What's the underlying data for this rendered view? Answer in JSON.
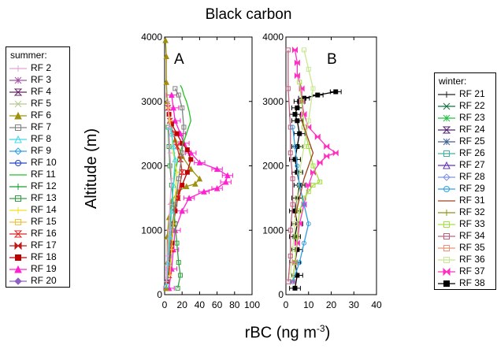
{
  "figure": {
    "title": "Black carbon",
    "ylabel": "Altitude (m)",
    "xlabel_base": "rBC (ng m",
    "xlabel_sup": "-3",
    "xlabel_end": ")"
  },
  "legends": {
    "summer": {
      "title": "summer:",
      "items": [
        {
          "label": "RF 2",
          "color": "#e8a0d8",
          "marker": "plus"
        },
        {
          "label": "RF 3",
          "color": "#a050a0",
          "marker": "asterisk"
        },
        {
          "label": "RF 4",
          "color": "#602060",
          "marker": "hourglass"
        },
        {
          "label": "RF 5",
          "color": "#b8c890",
          "marker": "x"
        },
        {
          "label": "RF 6",
          "color": "#a09010",
          "marker": "triangle-filled"
        },
        {
          "label": "RF 7",
          "color": "#808080",
          "marker": "square-open"
        },
        {
          "label": "RF 8",
          "color": "#40d8e8",
          "marker": "triangle-open"
        },
        {
          "label": "RF 9",
          "color": "#30a0e0",
          "marker": "diamond-open"
        },
        {
          "label": "RF 10",
          "color": "#2040d0",
          "marker": "circle-open"
        },
        {
          "label": "RF 11",
          "color": "#20c020",
          "marker": "none"
        },
        {
          "label": "RF 12",
          "color": "#10a030",
          "marker": "plus"
        },
        {
          "label": "RF 13",
          "color": "#30a040",
          "marker": "square-open"
        },
        {
          "label": "RF 14",
          "color": "#f0e020",
          "marker": "plus"
        },
        {
          "label": "RF 15",
          "color": "#f0c040",
          "marker": "square-open"
        },
        {
          "label": "RF 16",
          "color": "#e02020",
          "marker": "hourglass"
        },
        {
          "label": "RF 17",
          "color": "#c01818",
          "marker": "bowtie"
        },
        {
          "label": "RF 18",
          "color": "#c00000",
          "marker": "square-filled"
        },
        {
          "label": "RF 19",
          "color": "#ff20d0",
          "marker": "triangle-filled"
        },
        {
          "label": "RF 20",
          "color": "#9060c0",
          "marker": "diamond-filled"
        }
      ]
    },
    "winter": {
      "title": "winter:",
      "items": [
        {
          "label": "RF 21",
          "color": "#202020",
          "marker": "plus"
        },
        {
          "label": "RF 22",
          "color": "#107040",
          "marker": "x"
        },
        {
          "label": "RF 23",
          "color": "#20c040",
          "marker": "asterisk"
        },
        {
          "label": "RF 24",
          "color": "#502070",
          "marker": "hourglass"
        },
        {
          "label": "RF 25",
          "color": "#406090",
          "marker": "asterisk"
        },
        {
          "label": "RF 26",
          "color": "#40b0a0",
          "marker": "square-open"
        },
        {
          "label": "RF 27",
          "color": "#6030c0",
          "marker": "triangle-open"
        },
        {
          "label": "RF 28",
          "color": "#8090e0",
          "marker": "diamond-open"
        },
        {
          "label": "RF 29",
          "color": "#30a0e0",
          "marker": "circle-open"
        },
        {
          "label": "RF 31",
          "color": "#a04020",
          "marker": "none"
        },
        {
          "label": "RF 32",
          "color": "#909010",
          "marker": "plus"
        },
        {
          "label": "RF 33",
          "color": "#a0e040",
          "marker": "square-open"
        },
        {
          "label": "RF 34",
          "color": "#c06080",
          "marker": "square-open"
        },
        {
          "label": "RF 35",
          "color": "#f09070",
          "marker": "square-open"
        },
        {
          "label": "RF 36",
          "color": "#c8e890",
          "marker": "square-open"
        },
        {
          "label": "RF 37",
          "color": "#ff30c0",
          "marker": "bowtie"
        },
        {
          "label": "RF 38",
          "color": "#000000",
          "marker": "square-filled"
        }
      ]
    }
  },
  "chart_data": [
    {
      "type": "line",
      "panel_label": "A",
      "xlim": [
        0,
        100
      ],
      "ylim": [
        0,
        4000
      ],
      "xticks": [
        0,
        20,
        40,
        60,
        80,
        100
      ],
      "yticks": [
        0,
        1000,
        2000,
        3000,
        4000
      ],
      "grid": false,
      "series": [
        {
          "name": "RF 19",
          "color": "#ff20d0",
          "errorbars": true,
          "x": [
            5,
            8,
            10,
            12,
            20,
            28,
            45,
            60,
            70,
            72,
            60,
            40,
            30,
            22,
            18,
            12,
            10,
            8
          ],
          "y": [
            100,
            400,
            700,
            1000,
            1300,
            1500,
            1600,
            1650,
            1750,
            1850,
            1950,
            2050,
            2200,
            2350,
            2500,
            2700,
            2900,
            3100
          ]
        },
        {
          "name": "RF 6",
          "color": "#a09010",
          "x": [
            2,
            3,
            3,
            5,
            8,
            15,
            25,
            35,
            40,
            30,
            20,
            12,
            6,
            3,
            2,
            2,
            1
          ],
          "y": [
            100,
            500,
            900,
            1200,
            1450,
            1600,
            1680,
            1720,
            1800,
            1950,
            2150,
            2400,
            2700,
            3000,
            3300,
            3700,
            3950
          ]
        },
        {
          "name": "RF 18",
          "color": "#c00000",
          "x": [
            3,
            5,
            8,
            10,
            12,
            15,
            20,
            26,
            30,
            26,
            20,
            14,
            8,
            5
          ],
          "y": [
            200,
            500,
            800,
            1100,
            1300,
            1500,
            1700,
            1900,
            2100,
            2250,
            2350,
            2500,
            2650,
            2800
          ]
        },
        {
          "name": "RF 11",
          "color": "#20c020",
          "x": [
            2,
            4,
            6,
            8,
            10,
            12,
            15,
            20,
            25,
            30,
            28,
            25,
            22,
            20,
            18
          ],
          "y": [
            200,
            600,
            1000,
            1400,
            1700,
            1900,
            2100,
            2300,
            2500,
            2700,
            2850,
            3000,
            3100,
            3200,
            3250
          ]
        },
        {
          "name": "RF 16",
          "color": "#e02020",
          "x": [
            5,
            8,
            10,
            15,
            20,
            18,
            14,
            10,
            6,
            4
          ],
          "y": [
            300,
            700,
            1100,
            1500,
            1900,
            2100,
            2300,
            2500,
            2700,
            2900
          ]
        },
        {
          "name": "RF 13",
          "color": "#30a040",
          "x": [
            15,
            18,
            16,
            14,
            12,
            10,
            8,
            6,
            5,
            4
          ],
          "y": [
            100,
            300,
            500,
            800,
            1100,
            1400,
            1700,
            2000,
            2300,
            2600
          ]
        },
        {
          "name": "RF 14",
          "color": "#f0e020",
          "x": [
            6,
            8,
            10,
            12,
            14,
            10,
            8,
            6,
            4
          ],
          "y": [
            300,
            700,
            1100,
            1500,
            1900,
            2200,
            2500,
            2700,
            2900
          ]
        },
        {
          "name": "RF 7",
          "color": "#808080",
          "x": [
            3,
            5,
            8,
            12,
            16,
            20,
            22,
            20,
            16,
            12
          ],
          "y": [
            200,
            600,
            1000,
            1400,
            1800,
            2200,
            2600,
            2900,
            3100,
            3200
          ]
        },
        {
          "name": "RF 8",
          "color": "#40d8e8",
          "x": [
            2,
            4,
            6,
            8,
            10,
            12,
            10,
            8,
            6
          ],
          "y": [
            150,
            500,
            900,
            1300,
            1700,
            2100,
            2300,
            2500,
            2600
          ]
        },
        {
          "name": "RF 2",
          "color": "#e8a0d8",
          "x": [
            2,
            3,
            5,
            6,
            8,
            6,
            5,
            4
          ],
          "y": [
            200,
            600,
            1000,
            1400,
            1800,
            2200,
            2600,
            3000
          ]
        }
      ]
    },
    {
      "type": "line",
      "panel_label": "B",
      "xlim": [
        0,
        40
      ],
      "ylim": [
        0,
        4000
      ],
      "xticks": [
        0,
        10,
        20,
        30,
        40
      ],
      "yticks": [
        0,
        1000,
        2000,
        3000,
        4000
      ],
      "grid": false,
      "series": [
        {
          "name": "RF 38",
          "color": "#000000",
          "errorbars": true,
          "x": [
            4,
            5,
            4,
            5,
            4,
            5,
            4,
            5,
            6,
            5,
            4,
            5,
            6,
            5,
            4,
            5,
            6,
            8,
            14,
            22
          ],
          "y": [
            100,
            300,
            500,
            700,
            900,
            1100,
            1300,
            1500,
            1700,
            1900,
            2100,
            2300,
            2500,
            2700,
            2800,
            2900,
            3000,
            3050,
            3100,
            3150
          ]
        },
        {
          "name": "RF 37",
          "color": "#ff30c0",
          "x": [
            3,
            4,
            5,
            6,
            8,
            10,
            12,
            15,
            18,
            22,
            18,
            14,
            10,
            8,
            7,
            7,
            5,
            5,
            4
          ],
          "y": [
            200,
            500,
            800,
            1100,
            1400,
            1700,
            1900,
            2050,
            2150,
            2200,
            2300,
            2450,
            2600,
            2800,
            3000,
            3200,
            3400,
            3600,
            3800
          ]
        },
        {
          "name": "RF 33",
          "color": "#a0e040",
          "x": [
            3,
            4,
            5,
            6,
            8,
            10,
            12,
            15,
            12,
            10,
            8,
            7,
            6
          ],
          "y": [
            200,
            500,
            900,
            1300,
            1500,
            1600,
            1700,
            1750,
            2000,
            2300,
            2600,
            3000,
            3300
          ]
        },
        {
          "name": "RF 36",
          "color": "#c8e890",
          "x": [
            2,
            3,
            4,
            5,
            6,
            8,
            10,
            12,
            10,
            8
          ],
          "y": [
            300,
            700,
            1100,
            1500,
            1900,
            2300,
            2700,
            3200,
            3500,
            3800
          ]
        },
        {
          "name": "RF 34",
          "color": "#c06080",
          "x": [
            1,
            2,
            2,
            3,
            3,
            2,
            2,
            1,
            1
          ],
          "y": [
            200,
            600,
            1000,
            1400,
            1800,
            2200,
            2600,
            3200,
            3800
          ]
        },
        {
          "name": "RF 29",
          "color": "#30a0e0",
          "x": [
            3,
            6,
            8,
            10,
            8,
            6,
            5,
            4,
            3
          ],
          "y": [
            200,
            500,
            800,
            1100,
            1400,
            1700,
            2000,
            2300,
            2600
          ]
        },
        {
          "name": "RF 31",
          "color": "#a04020",
          "x": [
            4,
            6,
            8,
            10,
            12,
            10,
            8,
            6
          ],
          "y": [
            1200,
            1500,
            1800,
            2000,
            2200,
            2400,
            2600,
            2800
          ]
        }
      ]
    }
  ]
}
